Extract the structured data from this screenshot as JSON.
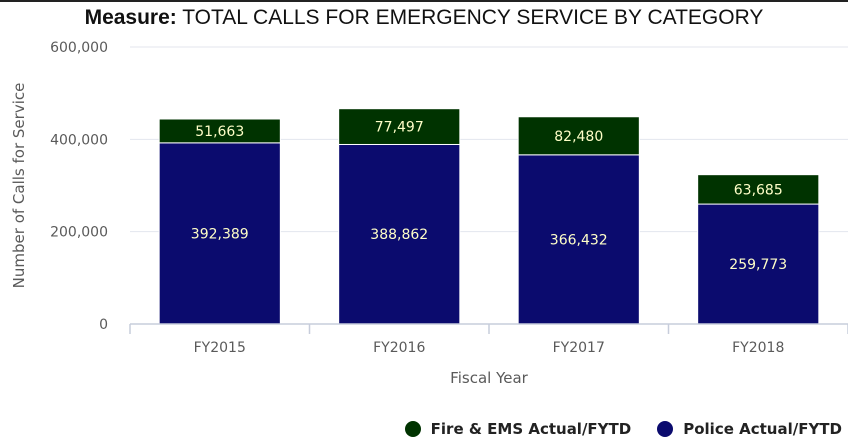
{
  "header": {
    "title_bold": "Measure:",
    "title_rest": " TOTAL CALLS FOR EMERGENCY SERVICE BY CATEGORY"
  },
  "colors": {
    "fire_ems": "#003300",
    "police": "#0b0b6e",
    "grid": "#e3e6ee",
    "axis": "#c7cddb",
    "label_text": "#ffffc8"
  },
  "chart_data": {
    "type": "bar",
    "stacked": true,
    "categories": [
      "FY2015",
      "FY2016",
      "FY2017",
      "FY2018"
    ],
    "series": [
      {
        "name": "Police Actual/FYTD",
        "values": [
          392389,
          388862,
          366432,
          259773
        ],
        "labels": [
          "392,389",
          "388,862",
          "366,432",
          "259,773"
        ],
        "color": "#0b0b6e"
      },
      {
        "name": "Fire & EMS Actual/FYTD",
        "values": [
          51663,
          77497,
          82480,
          63685
        ],
        "labels": [
          "51,663",
          "77,497",
          "82,480",
          "63,685"
        ],
        "color": "#003300"
      }
    ],
    "xlabel": "Fiscal Year",
    "ylabel": "Number of Calls for Service",
    "ylim": [
      0,
      600000
    ],
    "yticks": [
      0,
      200000,
      400000,
      600000
    ],
    "ytick_labels": [
      "0",
      "200,000",
      "400,000",
      "600,000"
    ],
    "grid": true,
    "legend_position": "bottom-right",
    "legend": [
      {
        "name": "Fire & EMS Actual/FYTD",
        "color": "#003300"
      },
      {
        "name": "Police Actual/FYTD",
        "color": "#0b0b6e"
      }
    ]
  }
}
